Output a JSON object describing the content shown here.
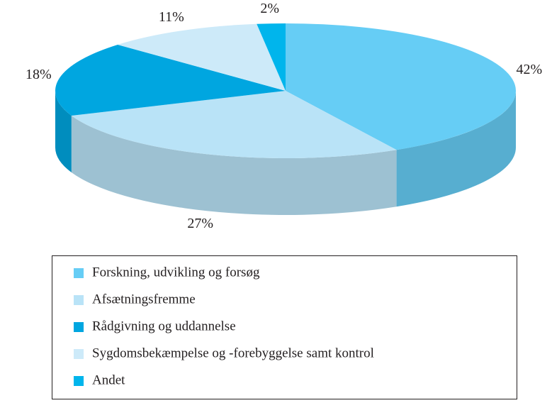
{
  "chart_data": {
    "type": "pie3d",
    "categories": [
      "Forskning, udvikling og forsøg",
      "Afsætningsfremme",
      "Rådgivning og uddannelse",
      "Sygdomsbekæmpelse og -forebyggelse samt kontrol",
      "Andet"
    ],
    "values": [
      42,
      27,
      18,
      11,
      2
    ],
    "value_labels": [
      "42%",
      "27%",
      "18%",
      "11%",
      "2%"
    ],
    "colors": [
      "#66cdf5",
      "#b9e3f7",
      "#00a6e0",
      "#cdeaf9",
      "#00b5ec"
    ],
    "legend": "bottom"
  }
}
